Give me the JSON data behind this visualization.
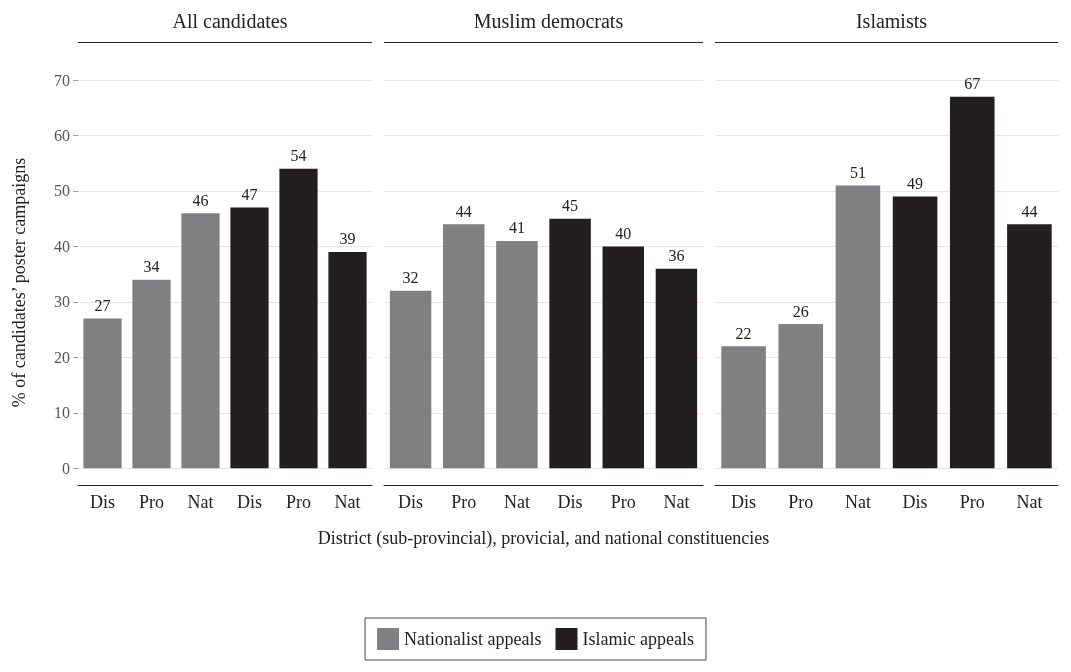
{
  "chart_data": [
    {
      "type": "bar",
      "title": "All candidates",
      "ylabel": "% of candidates’ poster campaigns",
      "categories": [
        "Dis",
        "Pro",
        "Nat",
        "Dis",
        "Pro",
        "Nat"
      ],
      "series": [
        {
          "color": "#808083",
          "values": [
            27,
            34,
            46,
            null,
            null,
            null
          ]
        },
        {
          "color": "#231f20",
          "values": [
            null,
            null,
            null,
            47,
            54,
            39
          ]
        }
      ],
      "ylim": [
        -3,
        70
      ],
      "yticks": [
        0,
        10,
        20,
        30,
        40,
        50,
        60,
        70
      ],
      "grid": "y",
      "data_labels": true,
      "legend": false
    },
    {
      "type": "bar",
      "title": "Muslim democrats",
      "xlabel": "District (sub-provincial), provicial, and national constituencies",
      "categories": [
        "Dis",
        "Pro",
        "Nat",
        "Dis",
        "Pro",
        "Nat"
      ],
      "series": [
        {
          "name": "Nationalist appeals",
          "color": "#808083",
          "values": [
            32,
            44,
            41,
            null,
            null,
            null
          ]
        },
        {
          "name": "Islamic appeals",
          "color": "#231f20",
          "values": [
            null,
            null,
            null,
            45,
            40,
            36
          ]
        }
      ],
      "ylim": [
        -3,
        70
      ],
      "yticks": [
        0,
        10,
        20,
        30,
        40,
        50,
        60,
        70
      ],
      "grid": "y",
      "data_labels": true,
      "legend": "bottom",
      "tick_labels": "x"
    },
    {
      "type": "bar",
      "title": "Islamists",
      "categories": [
        "Dis",
        "Pro",
        "Nat",
        "Dis",
        "Pro",
        "Nat"
      ],
      "series": [
        {
          "color": "#808083",
          "values": [
            22,
            26,
            51,
            null,
            null,
            null
          ]
        },
        {
          "color": "#231f20",
          "values": [
            null,
            null,
            null,
            49,
            67,
            44
          ]
        }
      ],
      "ylim": [
        -3,
        70
      ],
      "yticks": [
        0,
        10,
        20,
        30,
        40,
        50,
        60,
        70
      ],
      "grid": "y",
      "data_labels": true,
      "legend": false,
      "tick_labels": "x"
    }
  ]
}
